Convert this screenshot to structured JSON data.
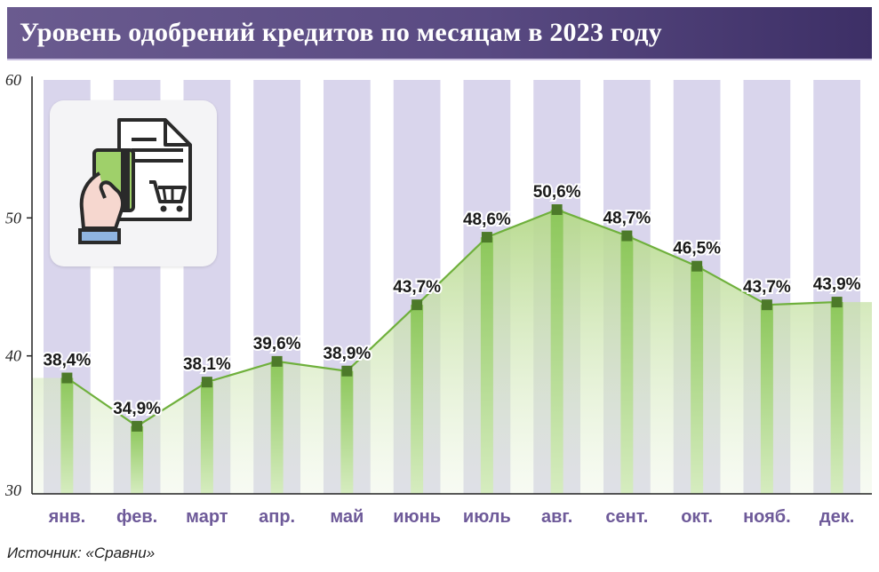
{
  "title": "Уровень одобрений кредитов по месяцам в 2023 году",
  "source": "Источник: «Сравни»",
  "colors": {
    "title_bg": "#594a82",
    "band": "#d9d5ec",
    "line": "#6fb03c",
    "marker": "#4d7a2a",
    "month_label": "#6e5a99",
    "area_top": "#b5d98a"
  },
  "icon": "card-payment-cart-icon",
  "chart_data": {
    "type": "area",
    "title": "Уровень одобрений кредитов по месяцам в 2023 году",
    "xlabel": "",
    "ylabel": "",
    "ylim": [
      30,
      60
    ],
    "yticks": [
      "30",
      "40",
      "50",
      "60"
    ],
    "grid": false,
    "categories": [
      "янв.",
      "фев.",
      "март",
      "апр.",
      "май",
      "июнь",
      "июль",
      "авг.",
      "сент.",
      "окт.",
      "нояб.",
      "дек."
    ],
    "values": [
      38.4,
      34.9,
      38.1,
      39.6,
      38.9,
      43.7,
      48.6,
      50.6,
      48.7,
      46.5,
      43.7,
      43.9
    ],
    "data_labels": [
      "38,4%",
      "34,9%",
      "38,1%",
      "39,6%",
      "38,9%",
      "43,7%",
      "48,6%",
      "50,6%",
      "48,7%",
      "46,5%",
      "43,7%",
      "43,9%"
    ]
  }
}
